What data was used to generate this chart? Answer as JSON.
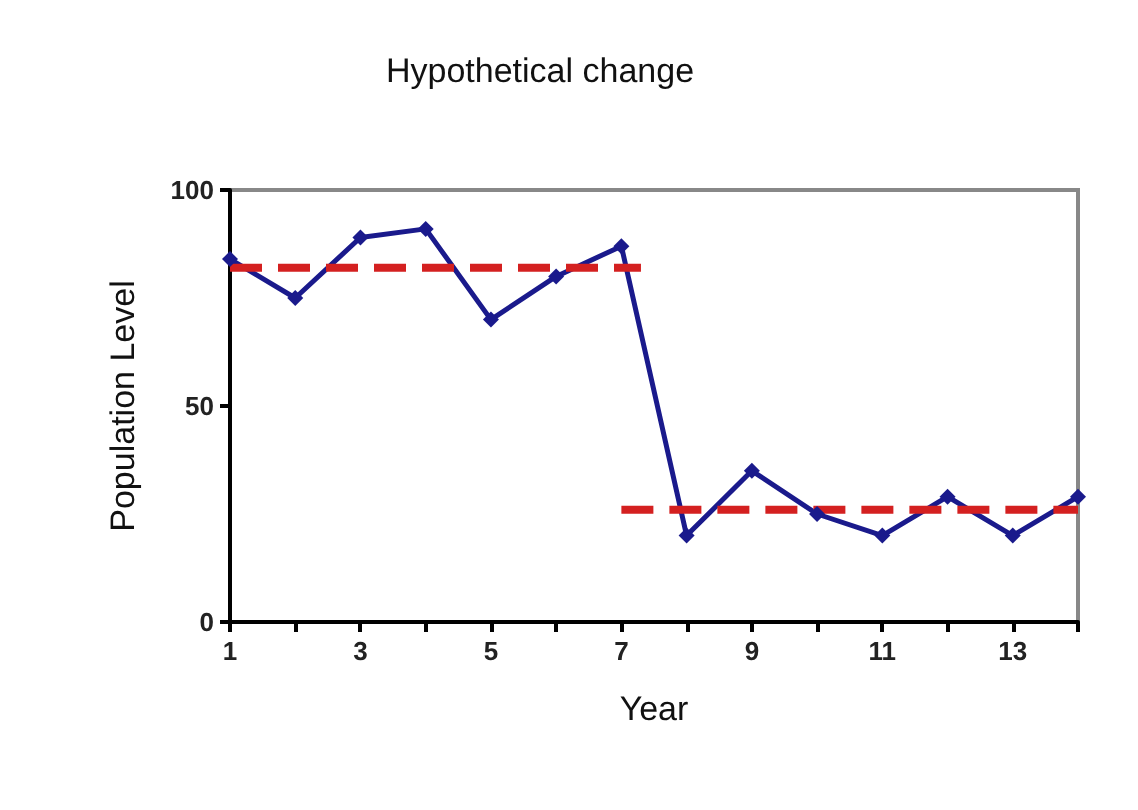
{
  "chart_data": {
    "type": "line",
    "title": "Hypothetical change",
    "xlabel": "Year",
    "ylabel": "Population Level",
    "x": [
      1,
      2,
      3,
      4,
      5,
      6,
      7,
      8,
      9,
      10,
      11,
      12,
      13,
      14
    ],
    "series": [
      {
        "color": "#1a1a8c",
        "values": [
          84,
          75,
          89,
          91,
          70,
          80,
          87,
          20,
          35,
          25,
          20,
          29,
          20,
          29
        ],
        "marker": "diamond",
        "line_style": "solid"
      },
      {
        "color": "#d42020",
        "x": [
          1,
          7.3
        ],
        "values": [
          82,
          82
        ],
        "marker": "none",
        "line_style": "dashed"
      },
      {
        "color": "#d42020",
        "x": [
          7,
          14
        ],
        "values": [
          26,
          26
        ],
        "marker": "none",
        "line_style": "dashed"
      }
    ],
    "xlim": [
      1,
      14
    ],
    "xticks": [
      1,
      {
        "value": 2,
        "label": null
      },
      3,
      {
        "value": 4,
        "label": null
      },
      5,
      {
        "value": 6,
        "label": null
      },
      7,
      {
        "value": 8,
        "label": null
      },
      9,
      {
        "value": 10,
        "label": null
      },
      11,
      {
        "value": 12,
        "label": null
      },
      13,
      {
        "value": 14,
        "label": null
      }
    ],
    "ylim": [
      0,
      100
    ],
    "yticks": [
      0,
      50,
      100
    ],
    "grid": false
  }
}
